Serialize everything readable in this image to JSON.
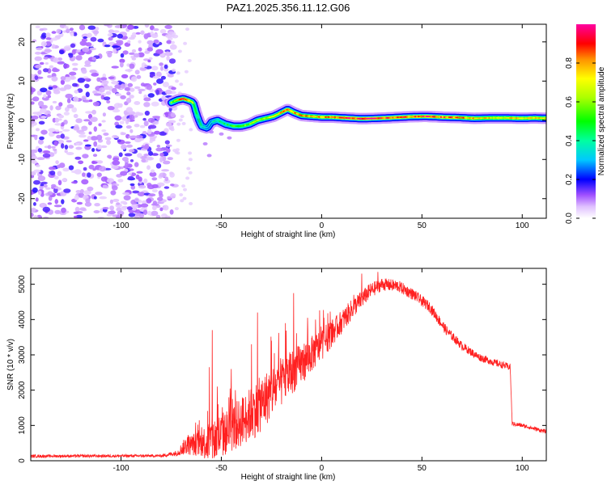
{
  "title": "PAZ1.2025.356.11.12.G06",
  "chart_data": [
    {
      "type": "heatmap",
      "name": "spectrogram",
      "xlabel": "Height of straight line (km)",
      "ylabel": "Frequency (Hz)",
      "xlim": [
        -145,
        112
      ],
      "ylim": [
        -25,
        24.5
      ],
      "xticks": [
        -100,
        -50,
        0,
        50,
        100
      ],
      "yticks": [
        -20,
        -10,
        0,
        10,
        20
      ],
      "noise_region_x": [
        -145,
        -75
      ],
      "trace": [
        {
          "x": -75,
          "y": 4.5,
          "a": 0.55
        },
        {
          "x": -72,
          "y": 5.2,
          "a": 0.7
        },
        {
          "x": -69,
          "y": 5.5,
          "a": 0.9
        },
        {
          "x": -66,
          "y": 5.0,
          "a": 0.75
        },
        {
          "x": -64,
          "y": 4.5,
          "a": 0.55
        },
        {
          "x": -62,
          "y": 1.0,
          "a": 0.4
        },
        {
          "x": -60,
          "y": -1.5,
          "a": 0.4
        },
        {
          "x": -57,
          "y": -2.0,
          "a": 0.3
        },
        {
          "x": -55,
          "y": -0.5,
          "a": 0.35
        },
        {
          "x": -52,
          "y": 0.0,
          "a": 0.4
        },
        {
          "x": -48,
          "y": -1.0,
          "a": 0.45
        },
        {
          "x": -44,
          "y": -1.5,
          "a": 0.5
        },
        {
          "x": -40,
          "y": -1.5,
          "a": 0.6
        },
        {
          "x": -36,
          "y": -1.0,
          "a": 0.55
        },
        {
          "x": -32,
          "y": 0.0,
          "a": 0.6
        },
        {
          "x": -28,
          "y": 0.5,
          "a": 0.65
        },
        {
          "x": -24,
          "y": 1.0,
          "a": 0.7
        },
        {
          "x": -20,
          "y": 2.0,
          "a": 0.75
        },
        {
          "x": -17,
          "y": 2.8,
          "a": 0.85
        },
        {
          "x": -14,
          "y": 2.0,
          "a": 0.8
        },
        {
          "x": -10,
          "y": 1.2,
          "a": 0.8
        },
        {
          "x": -5,
          "y": 1.0,
          "a": 0.75
        },
        {
          "x": 0,
          "y": 0.8,
          "a": 0.78
        },
        {
          "x": 5,
          "y": 0.8,
          "a": 0.8
        },
        {
          "x": 12,
          "y": 0.6,
          "a": 0.9
        },
        {
          "x": 20,
          "y": 0.4,
          "a": 0.92
        },
        {
          "x": 28,
          "y": 0.5,
          "a": 0.9
        },
        {
          "x": 36,
          "y": 0.7,
          "a": 0.85
        },
        {
          "x": 44,
          "y": 0.9,
          "a": 0.85
        },
        {
          "x": 52,
          "y": 1.0,
          "a": 0.9
        },
        {
          "x": 60,
          "y": 0.8,
          "a": 0.85
        },
        {
          "x": 68,
          "y": 0.7,
          "a": 0.8
        },
        {
          "x": 76,
          "y": 0.5,
          "a": 0.75
        },
        {
          "x": 84,
          "y": 0.6,
          "a": 0.72
        },
        {
          "x": 92,
          "y": 0.6,
          "a": 0.72
        },
        {
          "x": 100,
          "y": 0.5,
          "a": 0.75
        },
        {
          "x": 106,
          "y": 0.6,
          "a": 0.72
        },
        {
          "x": 112,
          "y": 0.5,
          "a": 0.7
        }
      ]
    },
    {
      "type": "colorbar",
      "name": "colorbar",
      "label": "Normalized spectral amplitude",
      "range": [
        0,
        1
      ],
      "ticks": [
        "0.0",
        "0.2",
        "0.4",
        "0.6",
        "0.8"
      ],
      "tick_values": [
        0,
        0.2,
        0.4,
        0.6,
        0.8
      ]
    },
    {
      "type": "line",
      "name": "snr",
      "xlabel": "Height of straight line (km)",
      "ylabel": "SNR (10 * v/v)",
      "xlim": [
        -145,
        112
      ],
      "ylim": [
        0,
        5450
      ],
      "xticks": [
        -100,
        -50,
        0,
        50,
        100
      ],
      "yticks": [
        0,
        1000,
        2000,
        3000,
        4000,
        5000
      ],
      "color": "#ff2020",
      "envelope": [
        {
          "x": -145,
          "base": 130,
          "amp": 40
        },
        {
          "x": -80,
          "base": 140,
          "amp": 40
        },
        {
          "x": -72,
          "base": 220,
          "amp": 80
        },
        {
          "x": -68,
          "base": 420,
          "amp": 250
        },
        {
          "x": -60,
          "base": 500,
          "amp": 380
        },
        {
          "x": -55,
          "base": 550,
          "amp": 700
        },
        {
          "x": -48,
          "base": 780,
          "amp": 650
        },
        {
          "x": -40,
          "base": 1100,
          "amp": 700
        },
        {
          "x": -32,
          "base": 1500,
          "amp": 800
        },
        {
          "x": -24,
          "base": 2000,
          "amp": 750
        },
        {
          "x": -16,
          "base": 2450,
          "amp": 650
        },
        {
          "x": -8,
          "base": 2850,
          "amp": 550
        },
        {
          "x": 0,
          "base": 3300,
          "amp": 450
        },
        {
          "x": 8,
          "base": 3800,
          "amp": 350
        },
        {
          "x": 16,
          "base": 4350,
          "amp": 280
        },
        {
          "x": 24,
          "base": 4800,
          "amp": 220
        },
        {
          "x": 30,
          "base": 5000,
          "amp": 180
        },
        {
          "x": 38,
          "base": 4950,
          "amp": 170
        },
        {
          "x": 46,
          "base": 4700,
          "amp": 160
        },
        {
          "x": 54,
          "base": 4350,
          "amp": 150
        },
        {
          "x": 62,
          "base": 3700,
          "amp": 140
        },
        {
          "x": 70,
          "base": 3250,
          "amp": 120
        },
        {
          "x": 78,
          "base": 2950,
          "amp": 110
        },
        {
          "x": 86,
          "base": 2780,
          "amp": 100
        },
        {
          "x": 94,
          "base": 2650,
          "amp": 100
        },
        {
          "x": 95,
          "base": 1050,
          "amp": 60
        },
        {
          "x": 100,
          "base": 1000,
          "amp": 60
        },
        {
          "x": 112,
          "base": 820,
          "amp": 60
        }
      ],
      "spikes": [
        {
          "x": -54.5,
          "y": 3700
        },
        {
          "x": -56,
          "y": 2650
        },
        {
          "x": -52,
          "y": 2100
        },
        {
          "x": -45,
          "y": 2600
        },
        {
          "x": -43,
          "y": 2000
        },
        {
          "x": -32,
          "y": 4200
        },
        {
          "x": -35,
          "y": 3300
        },
        {
          "x": -25,
          "y": 3400
        },
        {
          "x": -14,
          "y": 4750
        },
        {
          "x": -18,
          "y": 3900
        },
        {
          "x": -7,
          "y": 4050
        },
        {
          "x": -3,
          "y": 4000
        },
        {
          "x": 16,
          "y": 4700
        },
        {
          "x": 20,
          "y": 5300
        },
        {
          "x": 28,
          "y": 5350
        }
      ]
    }
  ]
}
